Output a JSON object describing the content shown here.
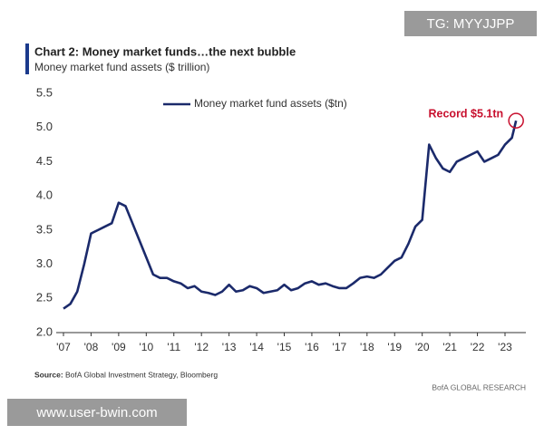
{
  "chart_data": {
    "type": "line",
    "title": "Chart 2: Money market funds…the next bubble",
    "subtitle": "Money market fund assets ($ trillion)",
    "x": [
      2007.0,
      2007.25,
      2007.5,
      2007.75,
      2008.0,
      2008.25,
      2008.5,
      2008.75,
      2009.0,
      2009.25,
      2009.5,
      2009.75,
      2010.0,
      2010.25,
      2010.5,
      2010.75,
      2011.0,
      2011.25,
      2011.5,
      2011.75,
      2012.0,
      2012.25,
      2012.5,
      2012.75,
      2013.0,
      2013.25,
      2013.5,
      2013.75,
      2014.0,
      2014.25,
      2014.5,
      2014.75,
      2015.0,
      2015.25,
      2015.5,
      2015.75,
      2016.0,
      2016.25,
      2016.5,
      2016.75,
      2017.0,
      2017.25,
      2017.5,
      2017.75,
      2018.0,
      2018.25,
      2018.5,
      2018.75,
      2019.0,
      2019.25,
      2019.5,
      2019.75,
      2020.0,
      2020.25,
      2020.5,
      2020.75,
      2021.0,
      2021.25,
      2021.5,
      2021.75,
      2022.0,
      2022.25,
      2022.5,
      2022.75,
      2023.0,
      2023.25,
      2023.4
    ],
    "series": [
      {
        "name": "Money market fund assets ($tn)",
        "color": "#1b2a6b",
        "values": [
          2.35,
          2.42,
          2.6,
          3.0,
          3.45,
          3.5,
          3.55,
          3.6,
          3.9,
          3.85,
          3.6,
          3.35,
          3.1,
          2.85,
          2.8,
          2.8,
          2.75,
          2.72,
          2.65,
          2.68,
          2.6,
          2.58,
          2.55,
          2.6,
          2.7,
          2.6,
          2.62,
          2.68,
          2.65,
          2.58,
          2.6,
          2.62,
          2.7,
          2.62,
          2.65,
          2.72,
          2.75,
          2.7,
          2.72,
          2.68,
          2.65,
          2.65,
          2.72,
          2.8,
          2.82,
          2.8,
          2.85,
          2.95,
          3.05,
          3.1,
          3.3,
          3.55,
          3.65,
          4.75,
          4.55,
          4.4,
          4.35,
          4.5,
          4.55,
          4.6,
          4.65,
          4.5,
          4.55,
          4.6,
          4.75,
          4.85,
          5.1
        ]
      }
    ],
    "xlim": [
      2007,
      2023
    ],
    "xticks": [
      {
        "value": 2007,
        "label": "'07"
      },
      {
        "value": 2008,
        "label": "'08"
      },
      {
        "value": 2009,
        "label": "'09"
      },
      {
        "value": 2010,
        "label": "'10"
      },
      {
        "value": 2011,
        "label": "'11"
      },
      {
        "value": 2012,
        "label": "'12"
      },
      {
        "value": 2013,
        "label": "'13"
      },
      {
        "value": 2014,
        "label": "'14"
      },
      {
        "value": 2015,
        "label": "'15"
      },
      {
        "value": 2016,
        "label": "'16"
      },
      {
        "value": 2017,
        "label": "'17"
      },
      {
        "value": 2018,
        "label": "'18"
      },
      {
        "value": 2019,
        "label": "'19"
      },
      {
        "value": 2020,
        "label": "'20"
      },
      {
        "value": 2021,
        "label": "'21"
      },
      {
        "value": 2022,
        "label": "'22"
      },
      {
        "value": 2023,
        "label": "'23"
      }
    ],
    "ylim": [
      2,
      5.5
    ],
    "yticks": [
      {
        "value": 2,
        "label": "2.0"
      },
      2.5,
      {
        "value": 3,
        "label": "3.0"
      },
      3.5,
      {
        "value": 4,
        "label": "4.0"
      },
      4.5,
      {
        "value": 5,
        "label": "5.0"
      },
      5.5
    ],
    "annotation": {
      "text": "Record $5.1tn",
      "color": "#c8102e"
    },
    "legend": "upper left",
    "grid": false,
    "source_label": "Source:",
    "source": "BofA Global Investment Strategy, Bloomberg",
    "credit": "BofA GLOBAL RESEARCH"
  },
  "watermark_top": "TG: MYYJJPP",
  "watermark_bottom": "www.user-bwin.com"
}
